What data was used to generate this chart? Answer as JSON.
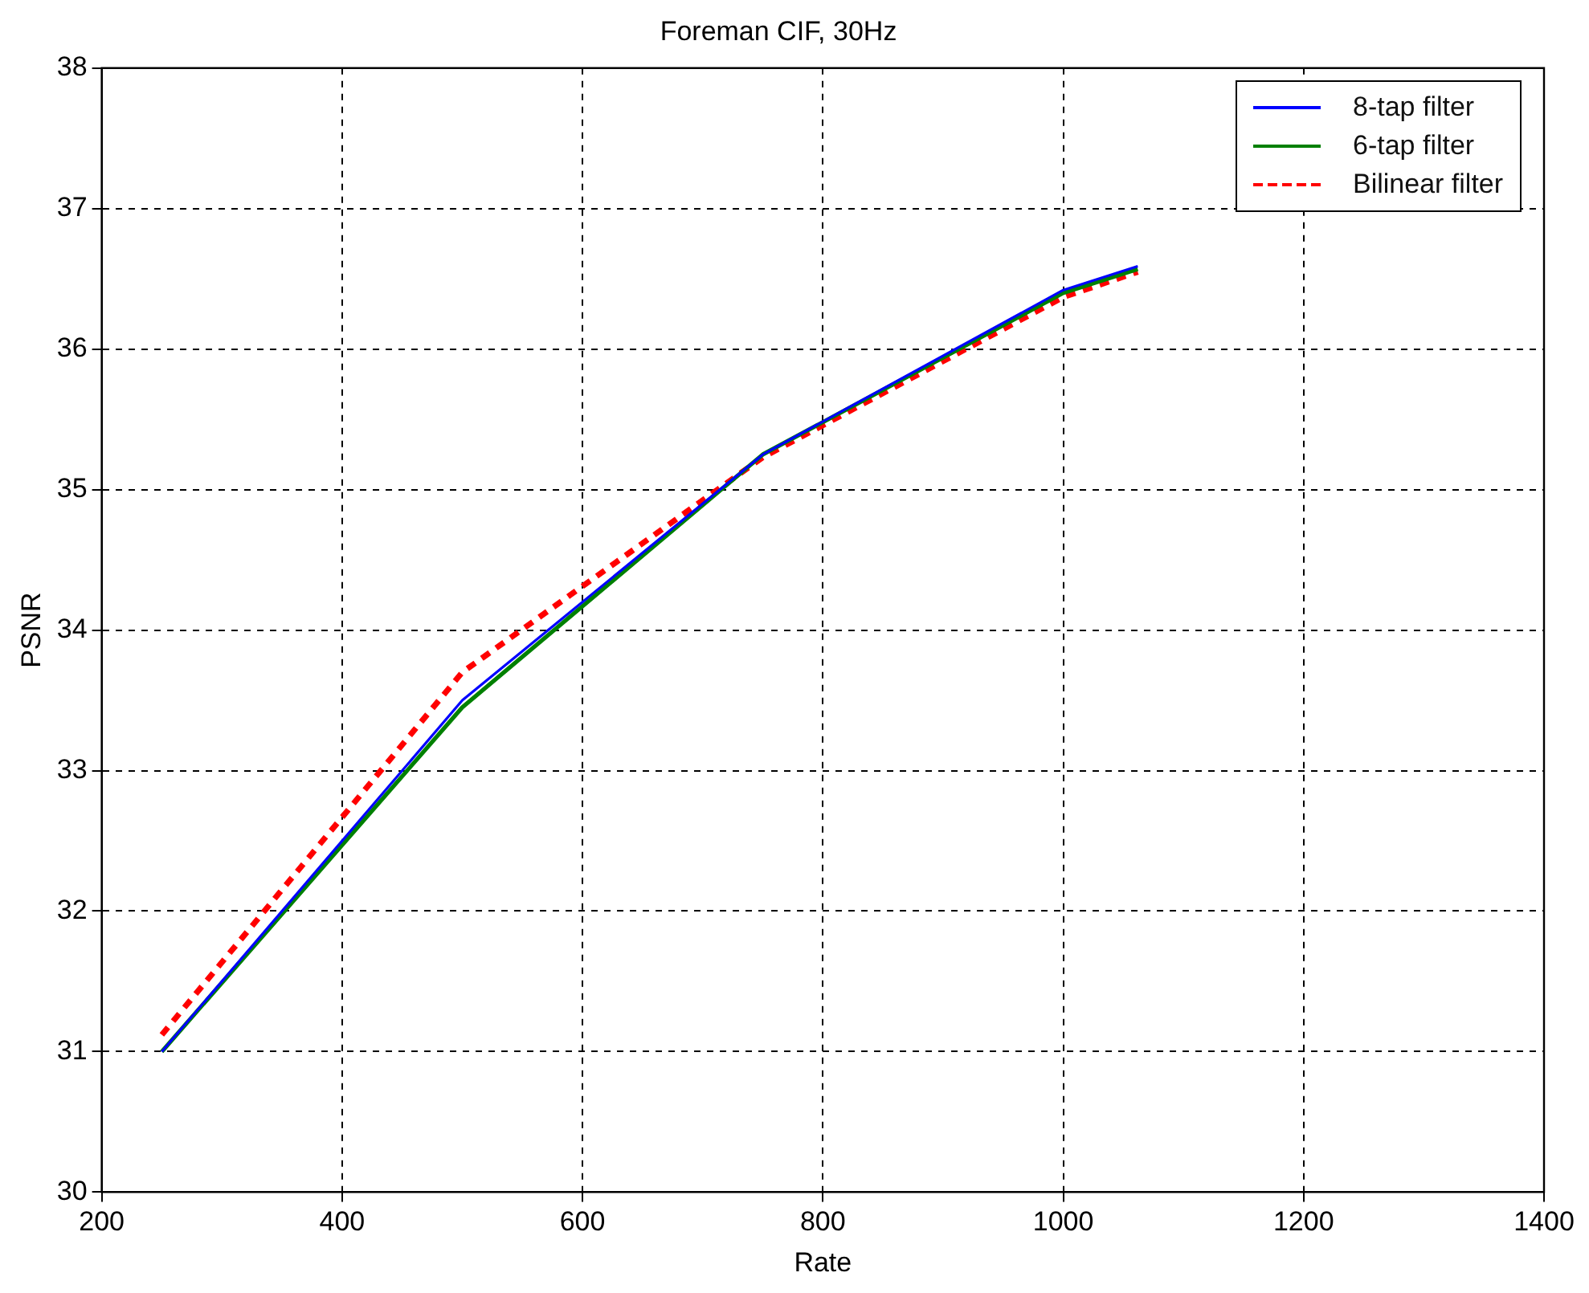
{
  "chart_data": {
    "type": "line",
    "title": "Foreman CIF, 30Hz",
    "xlabel": "Rate",
    "ylabel": "PSNR",
    "xlim": [
      200,
      1400
    ],
    "xticks": [
      200,
      400,
      600,
      800,
      1000,
      1200,
      1400
    ],
    "ylim": [
      30,
      38
    ],
    "yticks": [
      30,
      31,
      32,
      33,
      34,
      35,
      36,
      37,
      38
    ],
    "grid": true,
    "legend": "top right",
    "marker": "none",
    "series": [
      {
        "name": "8-tap filter",
        "color": "#0000ff",
        "line_style": "solid",
        "x": [
          250,
          500,
          750,
          1000,
          1062
        ],
        "values": [
          31.0,
          33.5,
          35.25,
          36.42,
          36.59
        ]
      },
      {
        "name": "6-tap filter",
        "color": "#008000",
        "line_style": "solid",
        "x": [
          250,
          500,
          750,
          1000,
          1062
        ],
        "values": [
          31.0,
          33.45,
          35.25,
          36.4,
          36.57
        ]
      },
      {
        "name": "Bilinear filter",
        "color": "#ff0000",
        "line_style": "dashed",
        "x": [
          250,
          500,
          750,
          1000,
          1062
        ],
        "values": [
          31.12,
          33.7,
          35.23,
          36.37,
          36.55
        ]
      }
    ]
  }
}
